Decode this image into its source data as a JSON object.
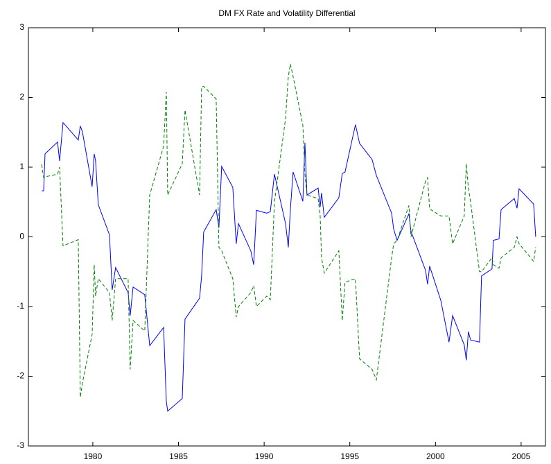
{
  "chart_data": {
    "type": "line",
    "title": "DM FX Rate and Volatility Differential",
    "x": [
      1977.01,
      1977.13,
      1977.21,
      1977.94,
      1978.06,
      1978.26,
      1979.15,
      1979.27,
      1979.39,
      1979.96,
      1980.08,
      1980.16,
      1980.32,
      1980.97,
      1981.13,
      1981.33,
      1982.06,
      1982.18,
      1982.35,
      1983.03,
      1983.32,
      1984.13,
      1984.29,
      1984.37,
      1985.22,
      1985.38,
      1986.23,
      1986.35,
      1986.47,
      1987.2,
      1987.36,
      1987.52,
      1988.17,
      1988.37,
      1988.5,
      1989.22,
      1989.39,
      1989.55,
      1990.15,
      1990.36,
      1990.6,
      1991.25,
      1991.41,
      1991.53,
      1991.69,
      1992.26,
      1992.38,
      1992.5,
      1993.15,
      1993.27,
      1993.35,
      1993.51,
      1994.36,
      1994.56,
      1994.72,
      1995.33,
      1995.57,
      1996.3,
      1996.55,
      1997.44,
      1997.56,
      1997.76,
      1998.45,
      1998.57,
      1999.42,
      1999.54,
      1999.66,
      2000.31,
      2000.79,
      2001.0,
      2001.68,
      2001.8,
      2001.92,
      2002.05,
      2002.57,
      2002.69,
      2003.3,
      2003.38,
      2003.71,
      2003.83,
      2004.6,
      2004.76,
      2004.88,
      2005.73,
      2005.85
    ],
    "series": [
      {
        "color": "#0000ff",
        "linestyle": "solid",
        "values": [
          0.66,
          0.66,
          1.19,
          1.36,
          1.09,
          1.64,
          1.39,
          1.59,
          1.51,
          0.72,
          1.19,
          1.09,
          0.46,
          0.03,
          -0.76,
          -0.44,
          -0.8,
          -1.13,
          -0.72,
          -0.83,
          -1.56,
          -1.3,
          -2.36,
          -2.5,
          -2.32,
          -1.18,
          -0.88,
          -0.56,
          0.07,
          0.39,
          0.13,
          1.01,
          0.71,
          -0.1,
          0.19,
          -0.2,
          -0.4,
          0.38,
          0.34,
          0.36,
          0.9,
          0.19,
          -0.15,
          0.39,
          0.93,
          0.51,
          1.35,
          0.6,
          0.7,
          0.43,
          0.63,
          0.28,
          0.56,
          0.91,
          0.93,
          1.61,
          1.34,
          1.11,
          0.88,
          0.34,
          0.11,
          -0.05,
          0.33,
          0.08,
          -0.48,
          -0.68,
          -0.42,
          -0.91,
          -1.51,
          -1.13,
          -1.55,
          -1.77,
          -1.36,
          -1.48,
          -1.51,
          -0.56,
          -0.46,
          -0.05,
          -0.03,
          0.39,
          0.55,
          0.41,
          0.69,
          0.47,
          0.0
        ]
      },
      {
        "color": "#008000",
        "linestyle": "dashed",
        "values": [
          1.04,
          0.85,
          0.86,
          0.9,
          1.0,
          -0.13,
          -0.04,
          -2.3,
          -2.1,
          -1.4,
          -0.4,
          -0.85,
          -0.6,
          -0.8,
          -1.2,
          -0.6,
          -0.6,
          -1.9,
          -1.2,
          -1.35,
          0.6,
          1.3,
          2.08,
          0.6,
          1.05,
          1.82,
          0.6,
          2.15,
          2.16,
          1.98,
          -0.15,
          -0.2,
          -0.6,
          -1.15,
          -1.0,
          -0.8,
          -0.7,
          -1.0,
          -0.85,
          -0.9,
          0.5,
          1.7,
          2.3,
          2.48,
          2.3,
          1.6,
          0.9,
          0.6,
          0.55,
          0.3,
          -0.3,
          -0.52,
          -0.2,
          -1.2,
          -0.65,
          -0.6,
          -1.75,
          -1.9,
          -2.05,
          -0.3,
          -0.1,
          -0.05,
          0.45,
          0.0,
          0.8,
          0.85,
          0.4,
          0.3,
          0.3,
          -0.1,
          0.3,
          1.05,
          0.7,
          0.5,
          -0.5,
          -0.5,
          -0.3,
          -0.4,
          -0.45,
          -0.3,
          -0.15,
          0.0,
          -0.1,
          -0.35,
          -0.15
        ]
      }
    ],
    "xlim": [
      1976.24,
      2006.42
    ],
    "xticks": [
      1980,
      1985,
      1990,
      1995,
      2000,
      2005
    ],
    "ylim": [
      -3,
      3
    ],
    "yticks": [
      -3,
      -2,
      -1,
      0,
      1,
      2,
      3
    ]
  }
}
